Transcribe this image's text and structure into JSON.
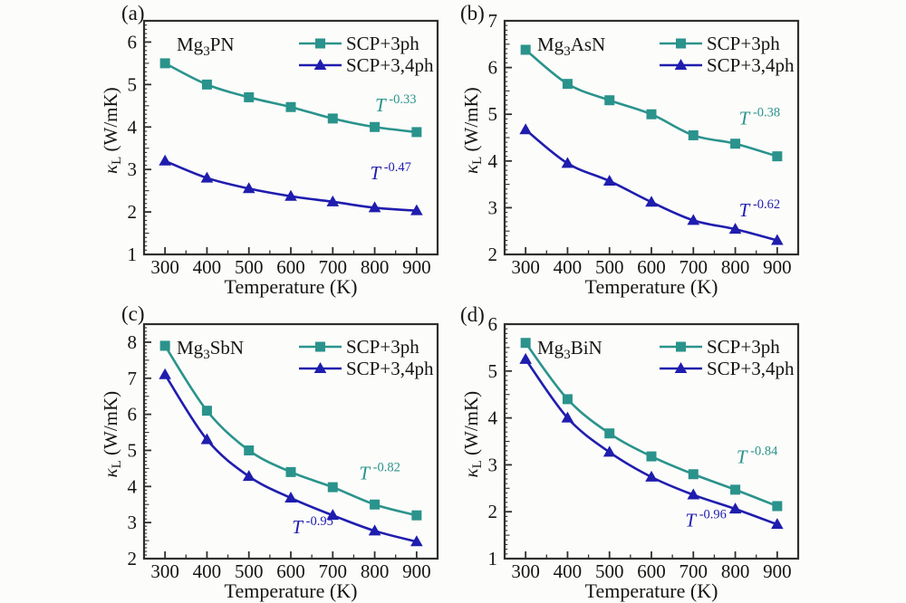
{
  "figure": {
    "frame_color": "#2f2f2f",
    "text_color": "#151515",
    "background": "#fcfcfa",
    "teal_accent": "#2a938c",
    "navy_accent": "#1f1dae"
  },
  "chart_data": [
    {
      "type": "line",
      "panel_label": "(a)",
      "material": {
        "pre": "Mg",
        "sub": "3",
        "post": "PN"
      },
      "xlabel": "Temperature (K)",
      "ylabel": {
        "symbol": "κ",
        "sub": "L",
        "units": " (W/mK)"
      },
      "x": [
        300,
        400,
        500,
        600,
        700,
        800,
        900
      ],
      "xlim": [
        250,
        950
      ],
      "xticks": [
        300,
        400,
        500,
        600,
        700,
        800,
        900
      ],
      "ylim": [
        1,
        6.5
      ],
      "yticks": [
        1,
        2,
        3,
        4,
        5,
        6
      ],
      "grid": false,
      "legend_position": "top-right",
      "series": [
        {
          "name": "SCP+3ph",
          "color": "#2a938c",
          "marker": "square",
          "values": [
            5.5,
            5.0,
            4.7,
            4.47,
            4.2,
            4.0,
            3.88
          ],
          "annotation": {
            "base": "T",
            "exponent": "-0.33",
            "at_x": 850,
            "at_y": 4.5
          }
        },
        {
          "name": "SCP+3,4ph",
          "color": "#1f1dae",
          "marker": "triangle",
          "values": [
            3.2,
            2.8,
            2.55,
            2.37,
            2.24,
            2.1,
            2.03
          ],
          "annotation": {
            "base": "T",
            "exponent": "-0.47",
            "at_x": 838,
            "at_y": 2.9
          }
        }
      ]
    },
    {
      "type": "line",
      "panel_label": "(b)",
      "material": {
        "pre": "Mg",
        "sub": "3",
        "post": "AsN"
      },
      "xlabel": "Temperature (K)",
      "ylabel": {
        "symbol": "κ",
        "sub": "L",
        "units": " (W/mK)"
      },
      "x": [
        300,
        400,
        500,
        600,
        700,
        800,
        900
      ],
      "xlim": [
        250,
        950
      ],
      "xticks": [
        300,
        400,
        500,
        600,
        700,
        800,
        900
      ],
      "ylim": [
        2,
        7
      ],
      "yticks": [
        2,
        3,
        4,
        5,
        6,
        7
      ],
      "grid": false,
      "legend_position": "top-right",
      "series": [
        {
          "name": "SCP+3ph",
          "color": "#2a938c",
          "marker": "square",
          "values": [
            6.38,
            5.65,
            5.3,
            5.0,
            4.55,
            4.37,
            4.1
          ],
          "annotation": {
            "base": "T",
            "exponent": "-0.38",
            "at_x": 858,
            "at_y": 4.9
          }
        },
        {
          "name": "SCP+3,4ph",
          "color": "#1f1dae",
          "marker": "triangle",
          "values": [
            4.67,
            3.95,
            3.57,
            3.12,
            2.73,
            2.54,
            2.3
          ],
          "annotation": {
            "base": "T",
            "exponent": "-0.62",
            "at_x": 858,
            "at_y": 2.93
          }
        }
      ]
    },
    {
      "type": "line",
      "panel_label": "(c)",
      "material": {
        "pre": "Mg",
        "sub": "3",
        "post": "SbN"
      },
      "xlabel": "Temperature (K)",
      "ylabel": {
        "symbol": "κ",
        "sub": "L",
        "units": " (W/mK)"
      },
      "x": [
        300,
        400,
        500,
        600,
        700,
        800,
        900
      ],
      "xlim": [
        250,
        950
      ],
      "xticks": [
        300,
        400,
        500,
        600,
        700,
        800,
        900
      ],
      "ylim": [
        2,
        8.5
      ],
      "yticks": [
        2,
        3,
        4,
        5,
        6,
        7,
        8
      ],
      "grid": false,
      "legend_position": "top-right",
      "series": [
        {
          "name": "SCP+3ph",
          "color": "#2a938c",
          "marker": "square",
          "values": [
            7.9,
            6.1,
            5.0,
            4.4,
            3.98,
            3.5,
            3.2
          ],
          "annotation": {
            "base": "T",
            "exponent": "-0.82",
            "at_x": 812,
            "at_y": 4.35
          }
        },
        {
          "name": "SCP+3,4ph",
          "color": "#1f1dae",
          "marker": "triangle",
          "values": [
            7.1,
            5.3,
            4.28,
            3.68,
            3.2,
            2.77,
            2.47
          ],
          "annotation": {
            "base": "T",
            "exponent": "-0.95",
            "at_x": 652,
            "at_y": 2.85
          }
        }
      ]
    },
    {
      "type": "line",
      "panel_label": "(d)",
      "material": {
        "pre": "Mg",
        "sub": "3",
        "post": "BiN"
      },
      "xlabel": "Temperature (K)",
      "ylabel": {
        "symbol": "κ",
        "sub": "L",
        "units": " (W/mK)"
      },
      "x": [
        300,
        400,
        500,
        600,
        700,
        800,
        900
      ],
      "xlim": [
        250,
        950
      ],
      "xticks": [
        300,
        400,
        500,
        600,
        700,
        800,
        900
      ],
      "ylim": [
        1,
        6
      ],
      "yticks": [
        1,
        2,
        3,
        4,
        5,
        6
      ],
      "grid": false,
      "legend_position": "top-right",
      "series": [
        {
          "name": "SCP+3ph",
          "color": "#2a938c",
          "marker": "square",
          "values": [
            5.6,
            4.4,
            3.67,
            3.18,
            2.8,
            2.47,
            2.12
          ],
          "annotation": {
            "base": "T",
            "exponent": "-0.84",
            "at_x": 852,
            "at_y": 3.15
          }
        },
        {
          "name": "SCP+3,4ph",
          "color": "#1f1dae",
          "marker": "triangle",
          "values": [
            5.25,
            4.0,
            3.27,
            2.74,
            2.36,
            2.06,
            1.73
          ],
          "annotation": {
            "base": "T",
            "exponent": "-0.96",
            "at_x": 730,
            "at_y": 1.8
          }
        }
      ]
    }
  ]
}
